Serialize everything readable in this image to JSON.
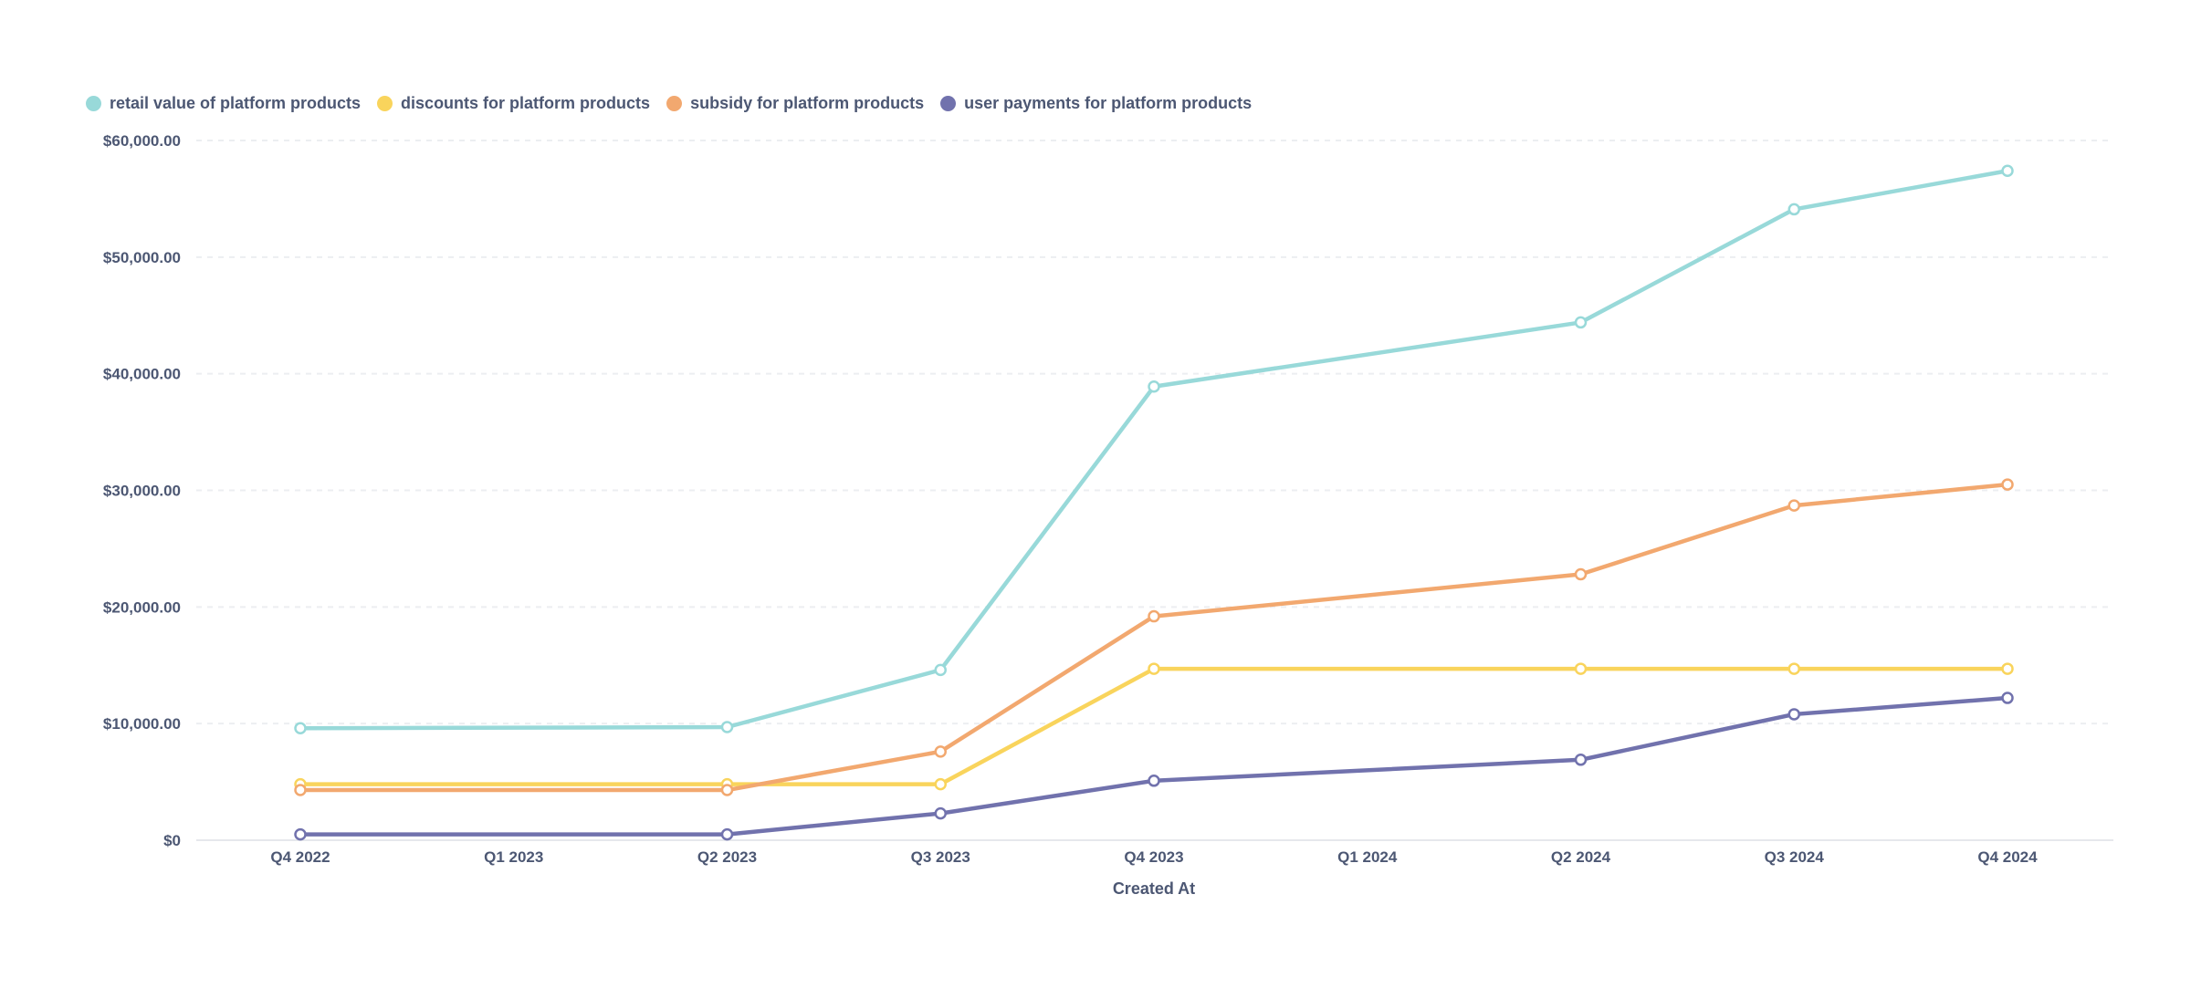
{
  "chart_data": {
    "type": "line",
    "title": "",
    "xlabel": "Created At",
    "ylabel": "",
    "categories": [
      "Q4 2022",
      "Q1 2023",
      "Q2 2023",
      "Q3 2023",
      "Q4 2023",
      "Q1 2024",
      "Q2 2024",
      "Q3 2024",
      "Q4 2024"
    ],
    "ylim": [
      0,
      60000
    ],
    "yticks": [
      {
        "value": 0,
        "label": "$0"
      },
      {
        "value": 10000,
        "label": "$10,000.00"
      },
      {
        "value": 20000,
        "label": "$20,000.00"
      },
      {
        "value": 30000,
        "label": "$30,000.00"
      },
      {
        "value": 40000,
        "label": "$40,000.00"
      },
      {
        "value": 50000,
        "label": "$50,000.00"
      },
      {
        "value": 60000,
        "label": "$60,000.00"
      }
    ],
    "grid": "horizontal dashed",
    "legend_position": "top-left",
    "series": [
      {
        "name": "retail value of platform products",
        "color": "#98d9d9",
        "values": [
          9600,
          null,
          9700,
          14600,
          38900,
          null,
          44400,
          54100,
          57400
        ]
      },
      {
        "name": "discounts for platform products",
        "color": "#f9d45c",
        "values": [
          4800,
          null,
          4800,
          4800,
          14700,
          null,
          14700,
          14700,
          14700
        ]
      },
      {
        "name": "subsidy for platform products",
        "color": "#f2a86f",
        "values": [
          4300,
          null,
          4300,
          7600,
          19200,
          null,
          22800,
          28700,
          30500
        ]
      },
      {
        "name": "user payments for platform products",
        "color": "#7172ad",
        "values": [
          500,
          null,
          500,
          2300,
          5100,
          null,
          6900,
          10800,
          12200
        ]
      }
    ]
  }
}
